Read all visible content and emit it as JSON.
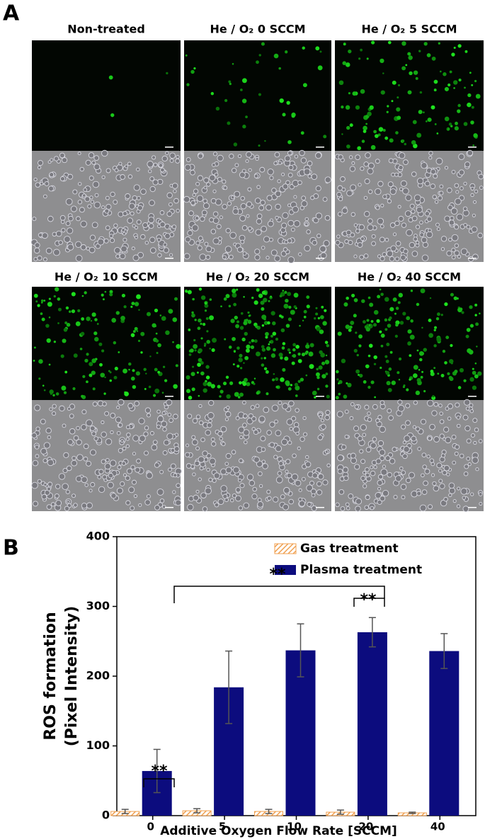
{
  "panel_a": {
    "label": "A",
    "images": [
      {
        "title": "Non-treated"
      },
      {
        "title": "He / O₂ 0 SCCM"
      },
      {
        "title": "He / O₂ 5 SCCM"
      },
      {
        "title": "He / O₂ 10 SCCM"
      },
      {
        "title": "He / O₂ 20 SCCM"
      },
      {
        "title": "He / O₂ 40 SCCM"
      }
    ]
  },
  "chart_data": {
    "type": "bar",
    "label": "B",
    "y_label": [
      "ROS formation",
      "(Pixel Intensity)"
    ],
    "x_label": "Additive Oxygen Flow Rate [SCCM]",
    "categories": [
      "0",
      "5",
      "10",
      "20",
      "40"
    ],
    "series": [
      {
        "name": "Gas treatment",
        "color": "#f0a050",
        "values": [
          6,
          7,
          6,
          5,
          4
        ],
        "errors": [
          3,
          3,
          3,
          3,
          1
        ]
      },
      {
        "name": "Plasma treatment",
        "color": "#0c0c7e",
        "values": [
          64,
          184,
          237,
          263,
          236
        ],
        "errors": [
          31,
          52,
          38,
          21,
          25
        ]
      }
    ],
    "ylim": [
      0,
      400
    ],
    "yticks": [
      0,
      100,
      200,
      300,
      400
    ],
    "legend": "upper-right",
    "annotations": [
      "**",
      "**",
      "**"
    ]
  }
}
